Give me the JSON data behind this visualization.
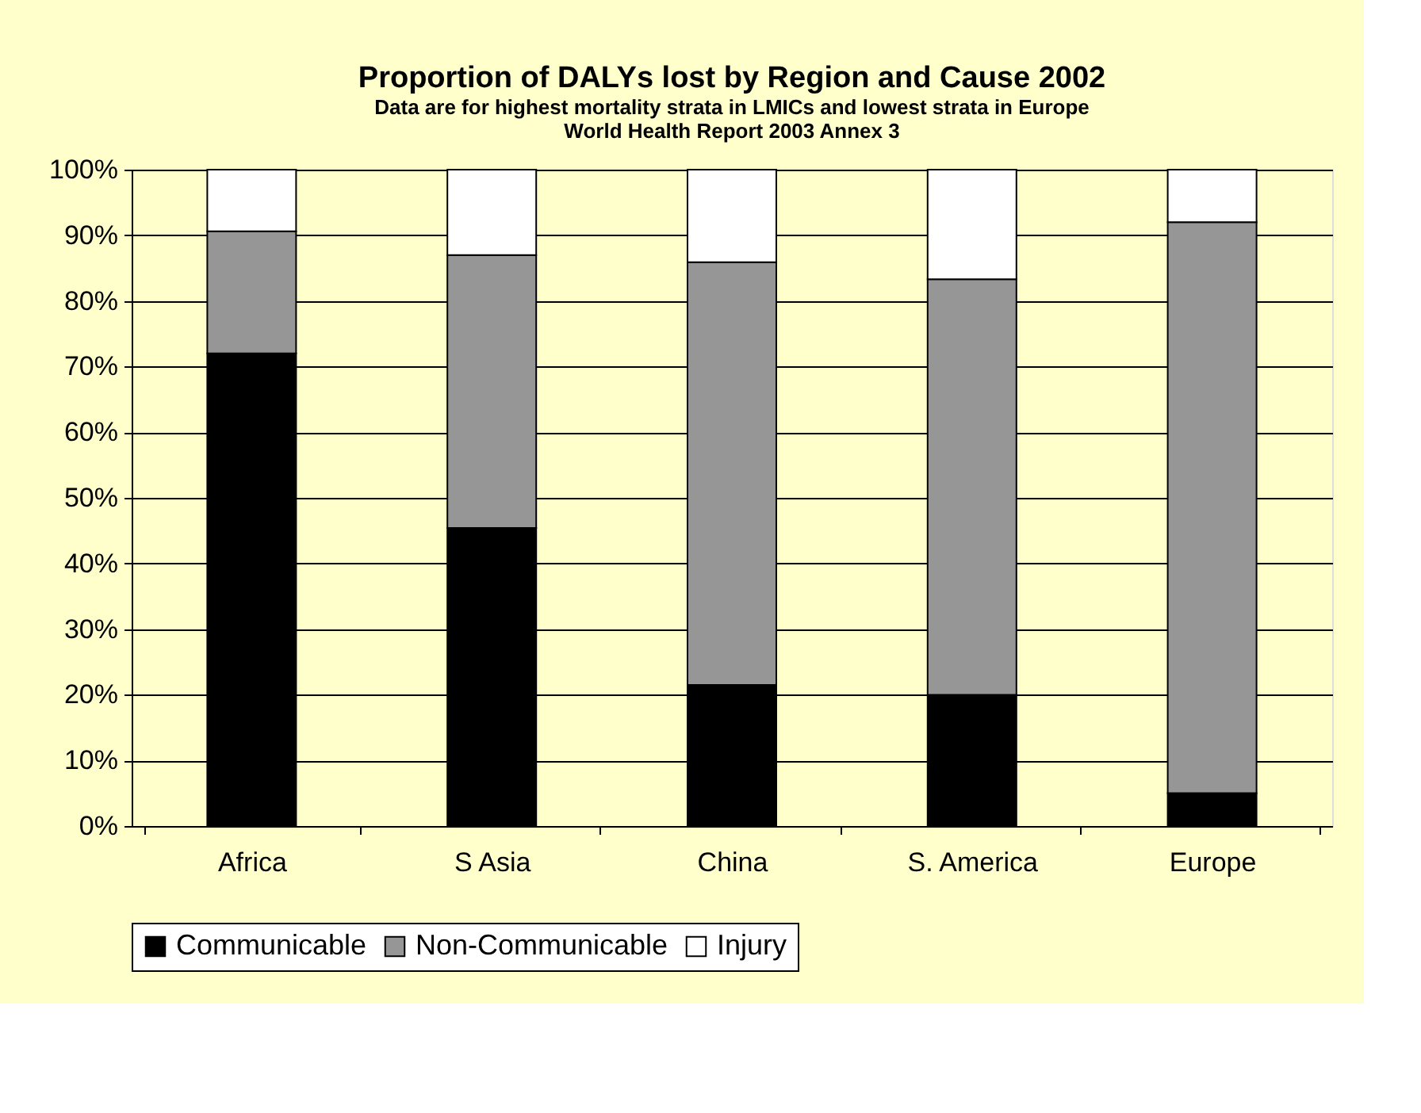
{
  "chart_data": {
    "type": "bar",
    "stacked": true,
    "title": "Proportion of DALYs lost by Region and Cause 2002",
    "subtitle": "Data are for highest mortality strata in LMICs and lowest strata in Europe\nWorld Health Report 2003 Annex 3",
    "categories": [
      "Africa",
      "S Asia",
      "China",
      "S. America",
      "Europe"
    ],
    "series": [
      {
        "name": "Communicable",
        "color": "#000000",
        "values": [
          72,
          45.4,
          21.5,
          20,
          5
        ]
      },
      {
        "name": "Non-Communicable",
        "color": "#969696",
        "values": [
          18.6,
          41.6,
          64.4,
          63.3,
          87
        ]
      },
      {
        "name": "Injury",
        "color": "#ffffff",
        "values": [
          9.4,
          13,
          14.1,
          16.7,
          8
        ]
      }
    ],
    "ylim": [
      0,
      100
    ],
    "yticks": [
      {
        "value": 0,
        "label": "0%"
      },
      {
        "value": 10,
        "label": "10%"
      },
      {
        "value": 20,
        "label": "20%"
      },
      {
        "value": 30,
        "label": "30%"
      },
      {
        "value": 40,
        "label": "40%"
      },
      {
        "value": 50,
        "label": "50%"
      },
      {
        "value": 60,
        "label": "60%"
      },
      {
        "value": 70,
        "label": "70%"
      },
      {
        "value": 80,
        "label": "80%"
      },
      {
        "value": 90,
        "label": "90%"
      },
      {
        "value": 100,
        "label": "100%"
      }
    ],
    "grid": "y",
    "legend": "bottom"
  }
}
